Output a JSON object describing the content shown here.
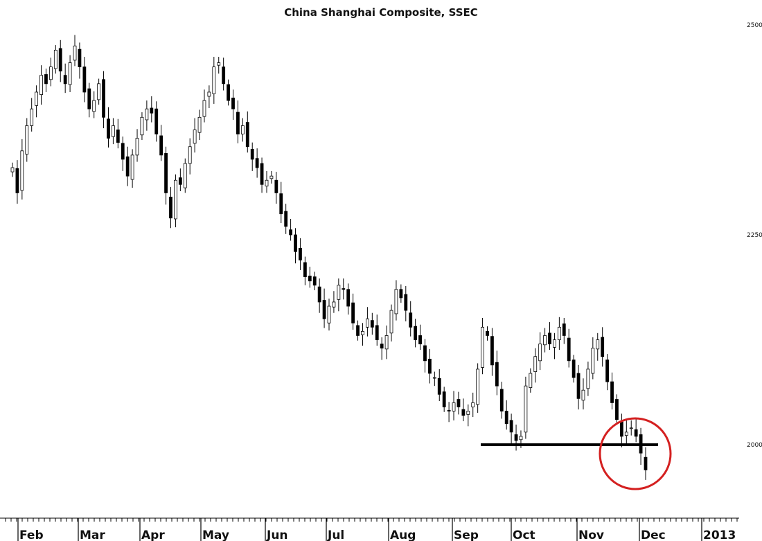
{
  "chart_data": {
    "type": "candlestick",
    "title": "China Shanghai Composite, SSEC",
    "x_label": "",
    "y_label": "",
    "ylim": [
      1900,
      2500
    ],
    "y_ticks": [
      2500,
      2250,
      2000
    ],
    "y_axis_side": "right",
    "grid": false,
    "x_ticks": [
      "Feb",
      "Mar",
      "Apr",
      "May",
      "Jun",
      "Jul",
      "Aug",
      "Sep",
      "Oct",
      "Nov",
      "Dec",
      "2013"
    ],
    "series": [
      {
        "values": [
          2330,
          2300,
          2350,
          2380,
          2400,
          2420,
          2440,
          2430,
          2450,
          2470,
          2445,
          2430,
          2455,
          2475,
          2450,
          2420,
          2400,
          2410,
          2430,
          2390,
          2365,
          2380,
          2360,
          2340,
          2320,
          2345,
          2365,
          2390,
          2400,
          2395,
          2370,
          2345,
          2300,
          2270,
          2315,
          2310,
          2335,
          2355,
          2375,
          2390,
          2410,
          2420,
          2450,
          2455,
          2430,
          2410,
          2400,
          2370,
          2380,
          2355,
          2340,
          2330,
          2310,
          2315,
          2320,
          2300,
          2275,
          2260,
          2250,
          2230,
          2220,
          2200,
          2195,
          2190,
          2170,
          2150,
          2165,
          2170,
          2190,
          2185,
          2165,
          2145,
          2130,
          2135,
          2150,
          2140,
          2125,
          2115,
          2130,
          2160,
          2185,
          2175,
          2160,
          2140,
          2125,
          2120,
          2100,
          2085,
          2080,
          2060,
          2045,
          2040,
          2050,
          2045,
          2035,
          2040,
          2050,
          2090,
          2140,
          2130,
          2095,
          2070,
          2040,
          2025,
          2015,
          2005,
          2010,
          2070,
          2085,
          2105,
          2120,
          2130,
          2120,
          2125,
          2140,
          2130,
          2100,
          2080,
          2055,
          2065,
          2090,
          2115,
          2125,
          2105,
          2075,
          2050,
          2030,
          2010,
          2015,
          2020,
          2010,
          1990,
          1970
        ]
      }
    ],
    "annotations": [
      {
        "type": "horizontal-line",
        "value": 2000,
        "color": "#000000"
      },
      {
        "type": "circle",
        "color": "#d42020"
      }
    ]
  }
}
